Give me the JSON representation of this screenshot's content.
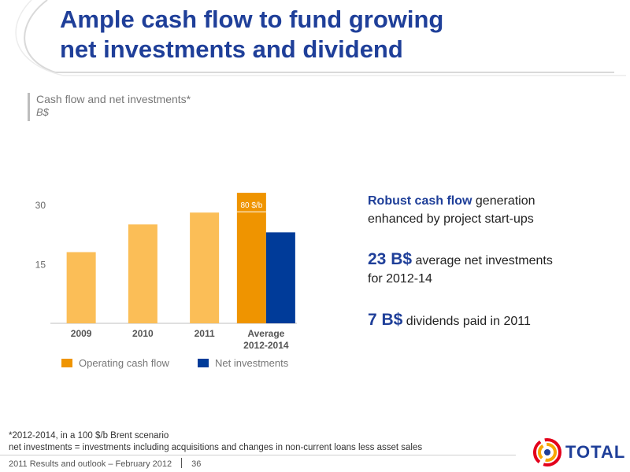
{
  "title": {
    "line1": "Ample cash flow to fund growing",
    "line2": "net investments and dividend"
  },
  "chart_data": {
    "type": "bar",
    "title": "Cash flow and net investments*",
    "unit": "B$",
    "categories": [
      "2009",
      "2010",
      "2011",
      "Average\n2012-2014"
    ],
    "series": [
      {
        "name": "Operating cash flow",
        "values": [
          18,
          25,
          28,
          33
        ]
      },
      {
        "name": "Net investments",
        "values": [
          null,
          null,
          null,
          23
        ]
      }
    ],
    "annotation": "80 $/b",
    "annotation_level": 28.2,
    "yticks": [
      15,
      30
    ],
    "ylim": [
      0,
      36
    ],
    "grid": false,
    "legend": "bottom"
  },
  "legend": {
    "item1": "Operating cash flow",
    "item2": "Net investments"
  },
  "bullets": {
    "b1_hl": "Robust cash flow",
    "b1_text1": " generation",
    "b1_text2": "enhanced by project start-ups",
    "b2_hl": "23 B$",
    "b2_text1": " average net investments",
    "b2_text2": "for 2012-14",
    "b3_hl": "7 B$",
    "b3_text1": " dividends paid in 2011"
  },
  "footnote": {
    "line1": "*2012-2014, in a 100 $/b Brent scenario",
    "line2": "net investments = investments including acquisitions and changes in non-current loans less asset sales"
  },
  "footer": {
    "left": "2011 Results and outlook – February 2012",
    "page": "36"
  },
  "logo": {
    "text": "TOTAL"
  },
  "colors": {
    "title": "#1f3f99",
    "cashflow_light": "#fbbe57",
    "cashflow_dark": "#ef9400",
    "net_investments": "#003b99"
  }
}
